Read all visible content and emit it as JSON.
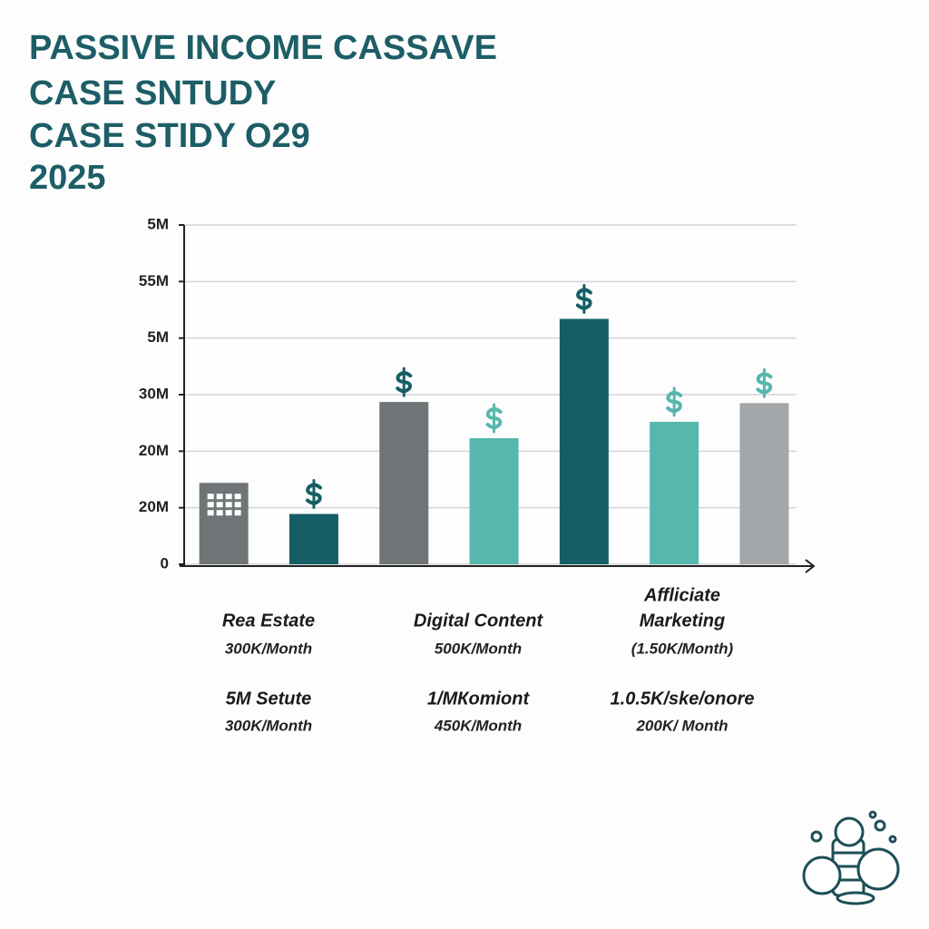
{
  "chart_data": {
    "type": "bar",
    "title": [
      "PASSIVE INCOME CASSAVE",
      "CASE SNTUDY",
      "CASE STIDY O29",
      "2025"
    ],
    "categories": [
      null,
      null,
      null,
      null,
      null,
      null,
      null
    ],
    "values": [
      1.44,
      0.89,
      2.87,
      2.23,
      4.34,
      2.52,
      2.85
    ],
    "colors": [
      "#6f7477",
      "#165e66",
      "#6f7477",
      "#56b7ad",
      "#165e66",
      "#56b7ad",
      "#a3a7aa"
    ],
    "ylim": [
      0,
      6
    ],
    "yticks": [
      0,
      {
        "value": 1,
        "label": "20M"
      },
      {
        "value": 2,
        "label": "20M"
      },
      {
        "value": 3,
        "label": "30M"
      },
      {
        "value": 4,
        "label": "5M"
      },
      {
        "value": 5,
        "label": "55M"
      },
      {
        "value": 6,
        "label": "5M"
      }
    ],
    "grid": true,
    "groups": [
      {
        "lines": [
          "Rea Estate",
          "300K/Month",
          "5M Setute",
          "300K/Month"
        ]
      },
      {
        "lines": [
          "Digital Content",
          "500K/Month",
          "1/MКomiont",
          "450K/Month"
        ]
      },
      {
        "lines": [
          "Affliciate",
          "Marketing",
          "(1.50K/Month)",
          "1.0.5K/ske/onore",
          "200K/ Month"
        ]
      }
    ]
  }
}
